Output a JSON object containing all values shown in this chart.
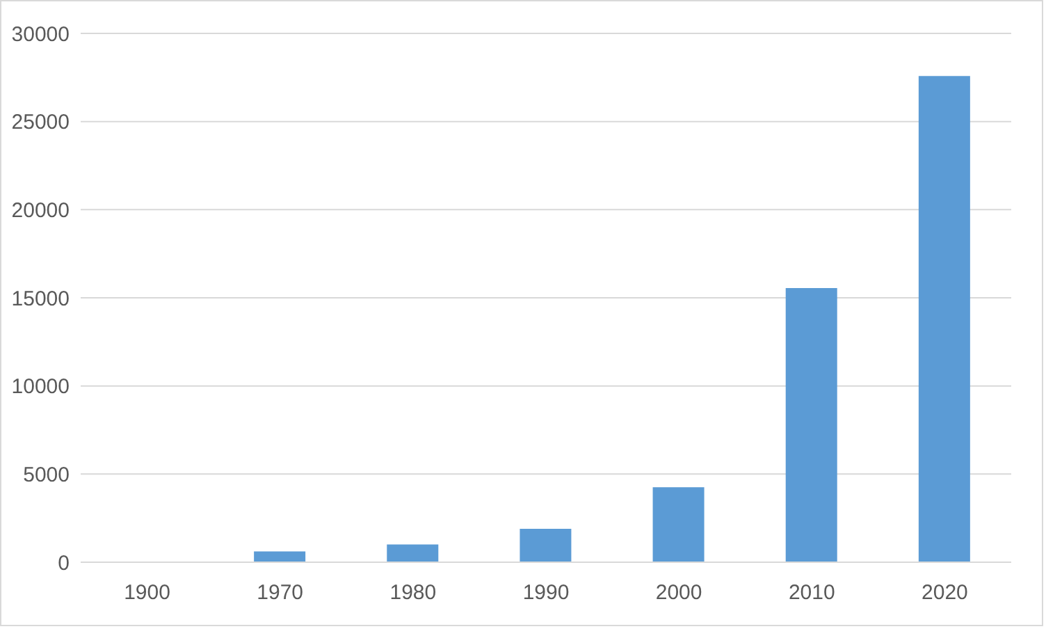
{
  "chart_data": {
    "type": "bar",
    "categories": [
      "1900",
      "1970",
      "1980",
      "1990",
      "2000",
      "2010",
      "2020"
    ],
    "values": [
      0,
      610,
      1010,
      1890,
      4250,
      15550,
      27580
    ],
    "color": "#5b9bd5",
    "ylim": [
      0,
      30000
    ],
    "yticks": [
      0,
      5000,
      10000,
      15000,
      20000,
      25000,
      30000
    ],
    "grid": "y"
  }
}
